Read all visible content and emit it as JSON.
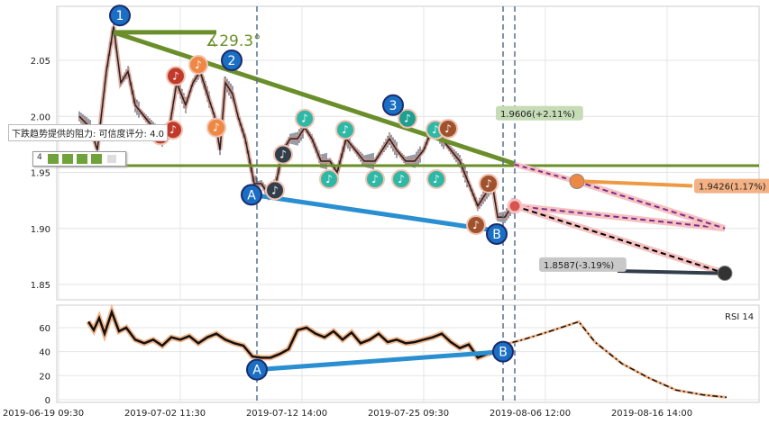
{
  "chart_data": [
    {
      "type": "line",
      "ylim": [
        1.835,
        2.095
      ],
      "yticks": [
        1.85,
        1.9,
        1.95,
        2.0,
        2.05
      ],
      "xticks": [
        "2019-06-19 09:30",
        "2019-07-02 11:30",
        "2019-07-12 14:00",
        "2019-07-25 09:30",
        "2019-08-06 12:00",
        "2019-08-16 14:00"
      ],
      "price_path": [
        [
          88,
          2.0
        ],
        [
          100,
          1.99
        ],
        [
          108,
          1.97
        ],
        [
          118,
          2.04
        ],
        [
          126,
          2.08
        ],
        [
          134,
          2.03
        ],
        [
          142,
          2.04
        ],
        [
          150,
          2.01
        ],
        [
          160,
          2.0
        ],
        [
          170,
          1.99
        ],
        [
          180,
          1.98
        ],
        [
          188,
          1.99
        ],
        [
          196,
          2.03
        ],
        [
          206,
          2.01
        ],
        [
          214,
          2.03
        ],
        [
          222,
          2.04
        ],
        [
          230,
          2.02
        ],
        [
          238,
          2.0
        ],
        [
          244,
          1.97
        ],
        [
          250,
          2.03
        ],
        [
          258,
          2.02
        ],
        [
          264,
          2.0
        ],
        [
          272,
          1.98
        ],
        [
          282,
          1.94
        ],
        [
          290,
          1.94
        ],
        [
          298,
          1.93
        ],
        [
          306,
          1.94
        ],
        [
          314,
          1.97
        ],
        [
          322,
          1.98
        ],
        [
          330,
          1.98
        ],
        [
          338,
          1.99
        ],
        [
          346,
          1.98
        ],
        [
          356,
          1.96
        ],
        [
          366,
          1.96
        ],
        [
          374,
          1.95
        ],
        [
          384,
          1.98
        ],
        [
          394,
          1.97
        ],
        [
          404,
          1.96
        ],
        [
          416,
          1.96
        ],
        [
          424,
          1.97
        ],
        [
          432,
          1.98
        ],
        [
          440,
          1.97
        ],
        [
          450,
          1.96
        ],
        [
          460,
          1.96
        ],
        [
          470,
          1.97
        ],
        [
          480,
          1.99
        ],
        [
          490,
          1.98
        ],
        [
          500,
          1.97
        ],
        [
          510,
          1.96
        ],
        [
          520,
          1.94
        ],
        [
          530,
          1.92
        ],
        [
          538,
          1.93
        ],
        [
          546,
          1.94
        ],
        [
          552,
          1.91
        ],
        [
          560,
          1.91
        ],
        [
          568,
          1.92
        ],
        [
          572,
          1.92
        ]
      ],
      "support_line": 1.956,
      "resistance_label": "下跌趋势提供的阻力: 可信度评分: 4.0",
      "rating_value": "4",
      "angle_label": "∡29.3°",
      "annotations": [
        {
          "text": "1.9606(+2.11%)",
          "color": "#c5dcb6"
        },
        {
          "text": "1.9426(1.17%)",
          "color": "#f4b183"
        },
        {
          "text": "1.8587(-3.19%)",
          "color": "#c8c8c8"
        }
      ],
      "projections": [
        {
          "to": [
            804,
            1.9
          ],
          "color": "#7b2d8b"
        },
        {
          "to": [
            804,
            1.86
          ],
          "color": "#000000"
        }
      ],
      "waves": [
        {
          "label": "1",
          "x": 133,
          "y": 2.09
        },
        {
          "label": "2",
          "x": 257,
          "y": 2.05
        },
        {
          "label": "3",
          "x": 436,
          "y": 2.01
        },
        {
          "label": "A",
          "x": 279,
          "y": 1.93
        },
        {
          "label": "B",
          "x": 551,
          "y": 1.895
        }
      ]
    },
    {
      "type": "line",
      "title": "RSI 14",
      "ylim": [
        0,
        80
      ],
      "yticks": [
        0,
        20,
        40,
        60
      ],
      "rsi_path": [
        [
          98,
          65
        ],
        [
          104,
          58
        ],
        [
          110,
          68
        ],
        [
          116,
          55
        ],
        [
          124,
          73
        ],
        [
          132,
          57
        ],
        [
          140,
          60
        ],
        [
          150,
          50
        ],
        [
          160,
          47
        ],
        [
          170,
          50
        ],
        [
          180,
          45
        ],
        [
          190,
          52
        ],
        [
          200,
          50
        ],
        [
          210,
          53
        ],
        [
          220,
          47
        ],
        [
          230,
          52
        ],
        [
          240,
          55
        ],
        [
          250,
          50
        ],
        [
          260,
          47
        ],
        [
          270,
          45
        ],
        [
          280,
          36
        ],
        [
          290,
          35
        ],
        [
          300,
          35
        ],
        [
          310,
          38
        ],
        [
          320,
          42
        ],
        [
          330,
          58
        ],
        [
          340,
          60
        ],
        [
          350,
          55
        ],
        [
          360,
          52
        ],
        [
          370,
          57
        ],
        [
          380,
          50
        ],
        [
          390,
          56
        ],
        [
          400,
          47
        ],
        [
          410,
          50
        ],
        [
          420,
          55
        ],
        [
          430,
          48
        ],
        [
          440,
          50
        ],
        [
          450,
          47
        ],
        [
          460,
          48
        ],
        [
          470,
          50
        ],
        [
          480,
          52
        ],
        [
          490,
          55
        ],
        [
          500,
          48
        ],
        [
          510,
          43
        ],
        [
          520,
          46
        ],
        [
          530,
          35
        ],
        [
          540,
          38
        ],
        [
          548,
          40
        ]
      ],
      "rsi_projection": [
        [
          555,
          45
        ],
        [
          580,
          50
        ],
        [
          610,
          57
        ],
        [
          642,
          65
        ],
        [
          660,
          48
        ],
        [
          690,
          30
        ],
        [
          720,
          18
        ],
        [
          750,
          8
        ],
        [
          780,
          4
        ],
        [
          806,
          2
        ]
      ],
      "waves": [
        {
          "label": "A",
          "x": 285,
          "y": 25
        },
        {
          "label": "B",
          "x": 558,
          "y": 40
        }
      ]
    }
  ]
}
